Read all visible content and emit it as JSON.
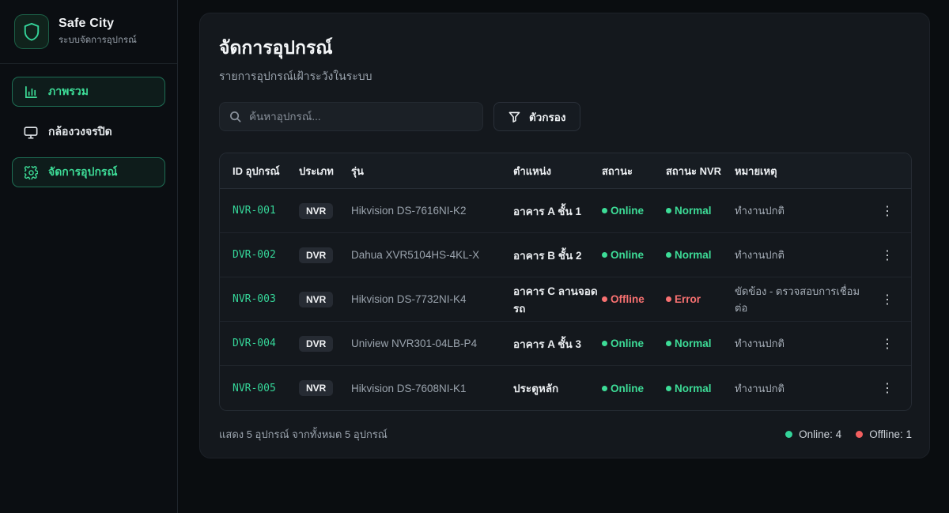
{
  "app": {
    "name": "Safe City",
    "subtitle": "ระบบจัดการอุปกรณ์"
  },
  "sidebar": {
    "items": [
      {
        "label": "ภาพรวม",
        "icon": "bar-chart-icon",
        "active": true
      },
      {
        "label": "กล้องวงจรปิด",
        "icon": "monitor-icon",
        "active": false
      },
      {
        "label": "จัดการอุปกรณ์",
        "icon": "gear-icon",
        "active": true
      }
    ]
  },
  "main": {
    "title": "จัดการอุปกรณ์",
    "subtitle": "รายการอุปกรณ์เฝ้าระวังในระบบ",
    "search": {
      "placeholder": "ค้นหาอุปกรณ์...",
      "value": ""
    },
    "filter_label": "ตัวกรอง"
  },
  "table": {
    "headers": [
      "ID อุปกรณ์",
      "ประเภท",
      "รุ่น",
      "ตำแหน่ง",
      "สถานะ",
      "สถานะ NVR",
      "หมายเหตุ"
    ],
    "rows": [
      {
        "id": "NVR-001",
        "type": "NVR",
        "model": "Hikvision DS-7616NI-K2",
        "location": "อาคาร A ชั้น 1",
        "status": "Online",
        "nvr_status": "Normal",
        "note": "ทำงานปกติ"
      },
      {
        "id": "DVR-002",
        "type": "DVR",
        "model": "Dahua XVR5104HS-4KL-X",
        "location": "อาคาร B ชั้น 2",
        "status": "Online",
        "nvr_status": "Normal",
        "note": "ทำงานปกติ"
      },
      {
        "id": "NVR-003",
        "type": "NVR",
        "model": "Hikvision DS-7732NI-K4",
        "location": "อาคาร C ลานจอดรถ",
        "status": "Offline",
        "nvr_status": "Error",
        "note": "ขัดข้อง - ตรวจสอบการเชื่อมต่อ"
      },
      {
        "id": "DVR-004",
        "type": "DVR",
        "model": "Uniview NVR301-04LB-P4",
        "location": "อาคาร A ชั้น 3",
        "status": "Online",
        "nvr_status": "Normal",
        "note": "ทำงานปกติ"
      },
      {
        "id": "NVR-005",
        "type": "NVR",
        "model": "Hikvision DS-7608NI-K1",
        "location": "ประตูหลัก",
        "status": "Online",
        "nvr_status": "Normal",
        "note": "ทำงานปกติ"
      }
    ]
  },
  "footer": {
    "summary": "แสดง 5 อุปกรณ์ จากทั้งหมด 5 อุปกรณ์",
    "online_label": "Online: 4",
    "offline_label": "Offline: 1"
  },
  "colors": {
    "accent": "#34d399",
    "online": "#34d399",
    "offline": "#f87171",
    "background": "#0a0d10",
    "card": "#14181d"
  }
}
